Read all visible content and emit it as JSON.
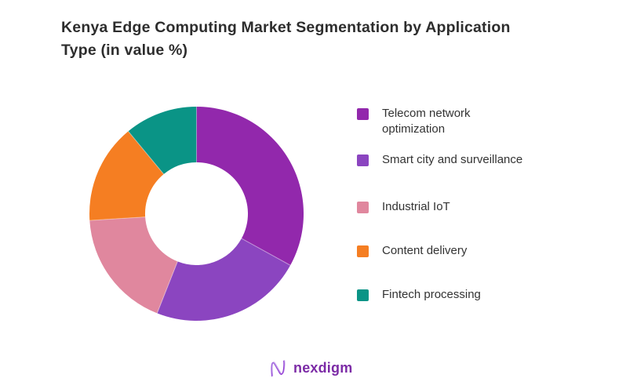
{
  "title": {
    "text": "Kenya Edge Computing Market Segmentation by Application Type (in value %)"
  },
  "chart_data": {
    "type": "pie",
    "style": "donut",
    "title": "Kenya Edge Computing Market Segmentation by Application Type (in value %)",
    "unit": "value %",
    "categories": [
      "Telecom network optimization",
      "Smart city and surveillance",
      "Industrial IoT",
      "Content delivery",
      "Fintech processing"
    ],
    "values": [
      33,
      23,
      18,
      15,
      11
    ],
    "colors": [
      "#9228AC",
      "#8B45C0",
      "#E0879E",
      "#F57E22",
      "#0A9486"
    ],
    "start_angle_deg": 0,
    "direction": "clockwise",
    "donut_hole_ratio": 0.48,
    "legend_position": "right",
    "data_labels_shown": false
  },
  "footer": {
    "brand_name": "nexdigm",
    "brand_color": "#7C2BA6",
    "logo_gradient": [
      "#A06BE0",
      "#8A2BD0"
    ]
  }
}
